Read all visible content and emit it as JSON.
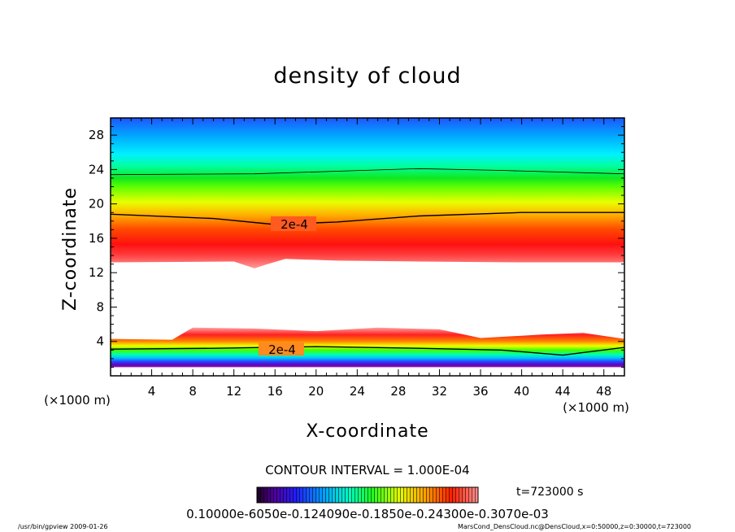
{
  "chart_data": {
    "type": "heatmap",
    "title": "density of cloud",
    "xlabel": "X-coordinate",
    "ylabel": "Z-coordinate",
    "x_unit": "(×1000 m)",
    "z_unit": "(×1000 m)",
    "xlim": [
      0,
      50
    ],
    "ylim": [
      0,
      30
    ],
    "x_ticks": [
      "4",
      "8",
      "12",
      "16",
      "20",
      "24",
      "28",
      "32",
      "36",
      "40",
      "44",
      "48"
    ],
    "y_ticks": [
      "4",
      "8",
      "12",
      "16",
      "20",
      "24",
      "28"
    ],
    "contour_interval_text": "CONTOUR INTERVAL = 1.000E-04",
    "time_text": "t=723000 s",
    "colorbar_label_text": "0.10000e-6050e-0.124090e-0.1850e-0.24300e-0.3070e-03",
    "contour_labels": [
      "2e-4",
      "2e-4"
    ],
    "upper_layer": {
      "bottom_z_approx": 13.2,
      "top_z_approx": 30,
      "peak_z_approx": 15.5,
      "contour_2e4_z": [
        [
          0,
          18.8
        ],
        [
          10,
          18.3
        ],
        [
          16,
          17.6
        ],
        [
          22,
          17.9
        ],
        [
          30,
          18.6
        ],
        [
          40,
          19.0
        ],
        [
          50,
          19.0
        ]
      ],
      "cyan_line_z": [
        [
          0,
          23.4
        ],
        [
          14,
          23.5
        ],
        [
          22,
          23.8
        ],
        [
          30,
          24.1
        ],
        [
          38,
          23.9
        ],
        [
          50,
          23.5
        ]
      ]
    },
    "lower_layer": {
      "bottom_z_approx": 1.0,
      "top_z_approx": 4.6,
      "contour_2e4_z": [
        [
          0,
          3.1
        ],
        [
          10,
          3.2
        ],
        [
          20,
          3.4
        ],
        [
          30,
          3.2
        ],
        [
          38,
          3.0
        ],
        [
          44,
          2.4
        ],
        [
          50,
          3.3
        ]
      ]
    }
  },
  "footer": {
    "left": "/usr/bin/gpview  2009-01-26",
    "right": "MarsCond_DensCloud.nc@DensCloud,x=0:50000,z=0:30000,t=723000"
  }
}
